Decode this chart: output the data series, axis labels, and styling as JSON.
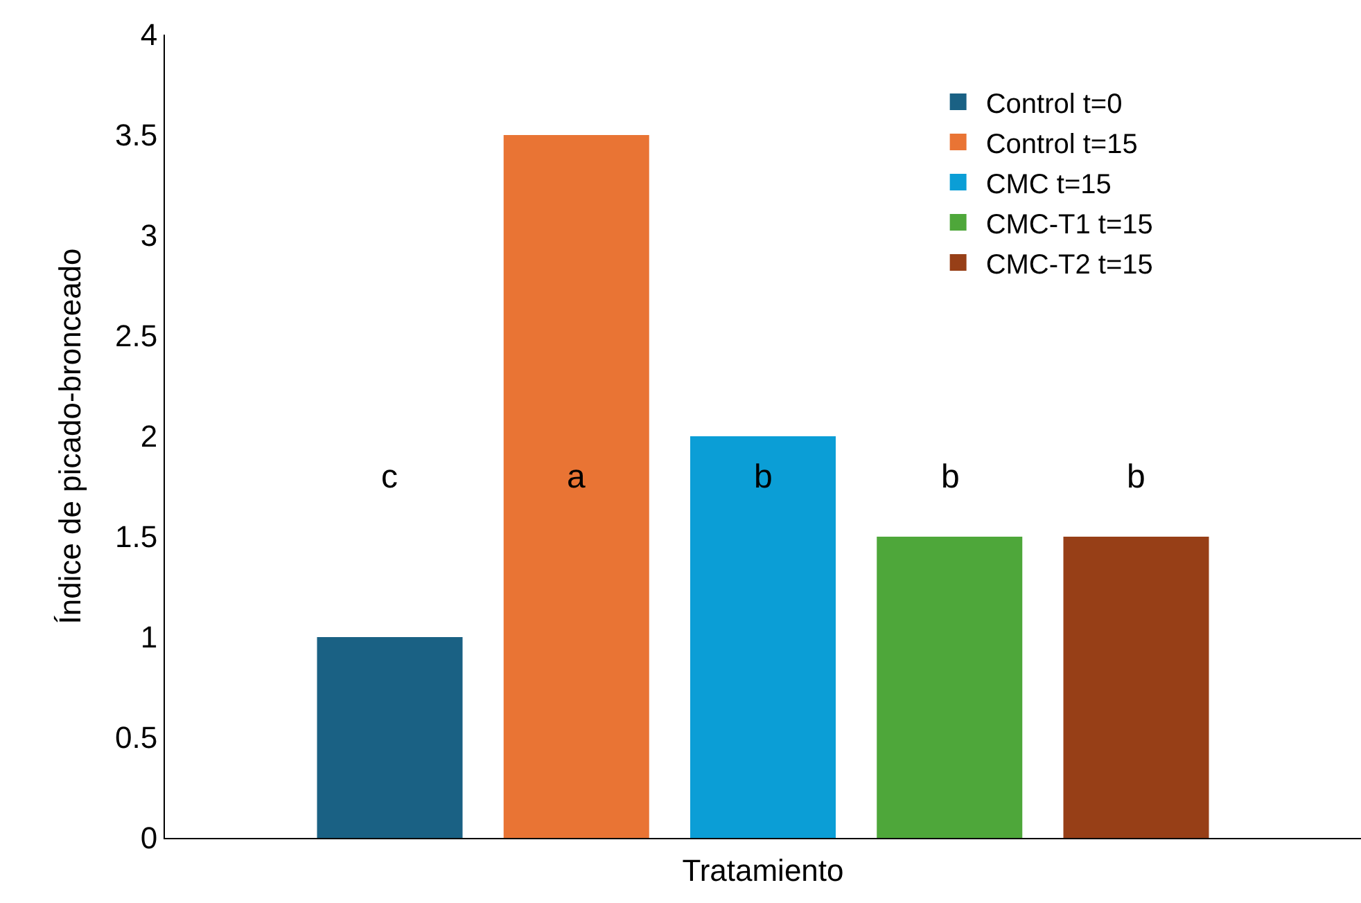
{
  "chart_data": {
    "type": "bar",
    "xlabel": "Tratamiento",
    "ylabel": "Índice de picado-bronceado",
    "categories": [
      null
    ],
    "series": [
      {
        "name": "Control t=0",
        "color": "#1a6184",
        "values": [
          1
        ]
      },
      {
        "name": "Control t=15",
        "color": "#e97434",
        "values": [
          3.5
        ]
      },
      {
        "name": "CMC t=15",
        "color": "#0b9ed6",
        "values": [
          2
        ]
      },
      {
        "name": "CMC-T1 t=15",
        "color": "#4ea73a",
        "values": [
          1.5
        ]
      },
      {
        "name": "CMC-T2 t=15",
        "color": "#973f17",
        "values": [
          1.5
        ]
      }
    ],
    "annotations": [
      "c",
      "a",
      "b",
      "b",
      "b"
    ],
    "ylim": [
      0,
      4
    ],
    "yticks": [
      0,
      0.5,
      1,
      1.5,
      2,
      2.5,
      3,
      3.5,
      4
    ],
    "legend": "top right",
    "tick_labels": "y"
  }
}
